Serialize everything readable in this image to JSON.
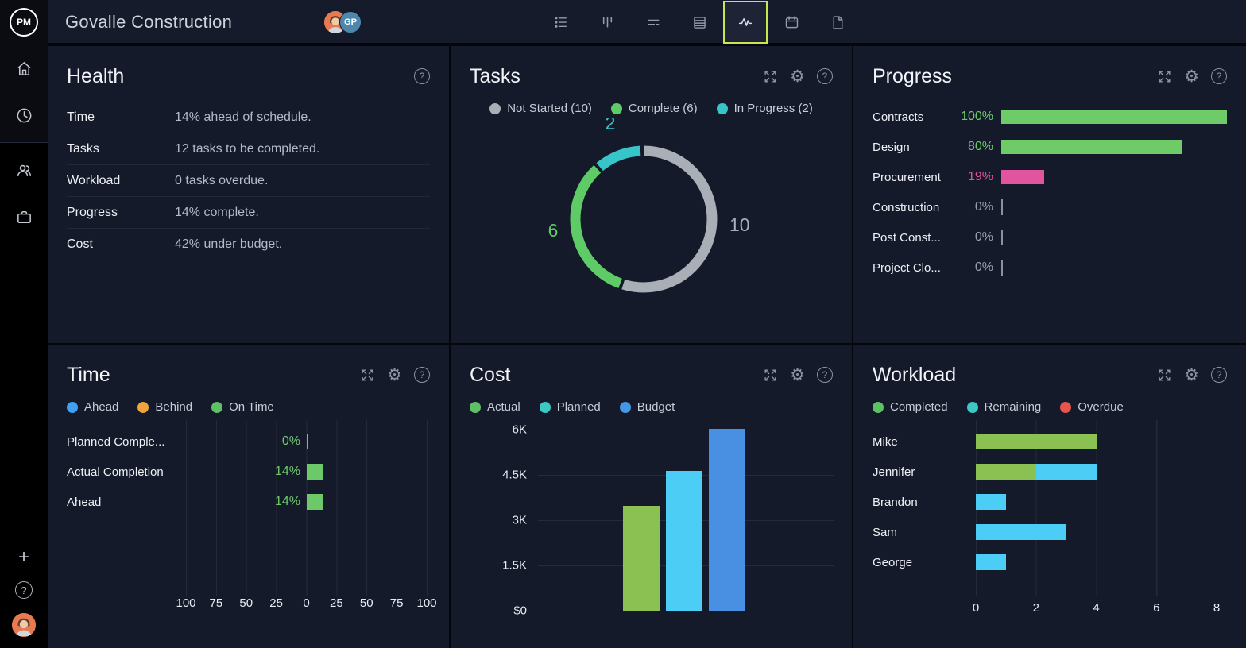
{
  "header": {
    "logo_text": "PM",
    "project_title": "Govalle Construction",
    "avatar_badge": "GP",
    "active_view": "dashboard-view",
    "active_border_color": "#c9e64f",
    "view_icons": [
      "list-view-icon",
      "board-view-icon",
      "gantt-view-icon",
      "sheet-view-icon",
      "dashboard-view-icon",
      "calendar-view-icon",
      "page-view-icon"
    ]
  },
  "sidebar": {
    "top_icons": [
      "home-icon",
      "clock-icon"
    ],
    "mid_icons": [
      "team-icon",
      "portfolio-icon"
    ],
    "add_label": "+",
    "help_label": "?"
  },
  "panels": {
    "health": {
      "title": "Health",
      "help_label": "?",
      "rows": [
        {
          "label": "Time",
          "value": "14% ahead of schedule."
        },
        {
          "label": "Tasks",
          "value": "12 tasks to be completed."
        },
        {
          "label": "Workload",
          "value": "0 tasks overdue."
        },
        {
          "label": "Progress",
          "value": "14% complete."
        },
        {
          "label": "Cost",
          "value": "42% under budget."
        }
      ]
    },
    "tasks": {
      "title": "Tasks",
      "legend": [
        {
          "label": "Not Started (10)",
          "color": "#a9aeb7"
        },
        {
          "label": "Complete (6)",
          "color": "#5ecb66"
        },
        {
          "label": "In Progress (2)",
          "color": "#36c6c9"
        }
      ],
      "chart_data": {
        "type": "pie",
        "subtype": "donut",
        "total": 18,
        "segments": [
          {
            "label": "Not Started",
            "value": 10,
            "color": "#a9aeb7"
          },
          {
            "label": "Complete",
            "value": 6,
            "color": "#5ecb66"
          },
          {
            "label": "In Progress",
            "value": 2,
            "color": "#36c6c9"
          }
        ]
      }
    },
    "progress": {
      "title": "Progress",
      "chart_data": {
        "type": "bar",
        "orientation": "horizontal",
        "max": 100,
        "zero_color": "#99a0ab",
        "rows": [
          {
            "label": "Contracts",
            "value": 100,
            "pct_label": "100%",
            "color": "#6ecb68"
          },
          {
            "label": "Design",
            "value": 80,
            "pct_label": "80%",
            "color": "#6ecb68"
          },
          {
            "label": "Procurement",
            "value": 19,
            "pct_label": "19%",
            "color": "#e0559e"
          },
          {
            "label": "Construction",
            "value": 0,
            "pct_label": "0%",
            "color": "#99a0ab"
          },
          {
            "label": "Post Const...",
            "value": 0,
            "pct_label": "0%",
            "color": "#99a0ab"
          },
          {
            "label": "Project Clo...",
            "value": 0,
            "pct_label": "0%",
            "color": "#99a0ab"
          }
        ]
      }
    },
    "time": {
      "title": "Time",
      "legend": [
        {
          "label": "Ahead",
          "color": "#41a0f0"
        },
        {
          "label": "Behind",
          "color": "#f2a33c"
        },
        {
          "label": "On Time",
          "color": "#5cc263"
        }
      ],
      "chart_data": {
        "type": "bar",
        "orientation": "horizontal-diverging",
        "axis_range": [
          -100,
          100
        ],
        "axis_ticks": [
          "100",
          "75",
          "50",
          "25",
          "0",
          "25",
          "50",
          "75",
          "100"
        ],
        "rows": [
          {
            "label": "Planned Comple...",
            "value": 0,
            "pct_label": "0%",
            "color": "#6dc86a"
          },
          {
            "label": "Actual Completion",
            "value": 14,
            "pct_label": "14%",
            "color": "#6dc86a"
          },
          {
            "label": "Ahead",
            "value": 14,
            "pct_label": "14%",
            "color": "#6dc86a"
          }
        ]
      }
    },
    "cost": {
      "title": "Cost",
      "legend": [
        {
          "label": "Actual",
          "color": "#5cc263"
        },
        {
          "label": "Planned",
          "color": "#3ec8c3"
        },
        {
          "label": "Budget",
          "color": "#4598e8"
        }
      ],
      "chart_data": {
        "type": "bar",
        "orientation": "vertical",
        "ymax": 6000,
        "yticks": [
          "6K",
          "4.5K",
          "3K",
          "1.5K",
          "$0"
        ],
        "series": [
          {
            "name": "Actual",
            "value": 3450,
            "color": "#8bc152"
          },
          {
            "name": "Planned",
            "value": 4600,
            "color": "#4bcdf6"
          },
          {
            "name": "Budget",
            "value": 6000,
            "color": "#4a90e2"
          }
        ]
      }
    },
    "workload": {
      "title": "Workload",
      "legend": [
        {
          "label": "Completed",
          "color": "#5cc263"
        },
        {
          "label": "Remaining",
          "color": "#3ec8c3"
        },
        {
          "label": "Overdue",
          "color": "#e8544a"
        }
      ],
      "chart_data": {
        "type": "bar",
        "subtype": "stacked",
        "orientation": "horizontal",
        "xmax": 8,
        "xticks": [
          "0",
          "2",
          "4",
          "6",
          "8"
        ],
        "colors": {
          "completed": "#8bc152",
          "remaining": "#4bcdf6",
          "overdue": "#e8544a"
        },
        "rows": [
          {
            "label": "Mike",
            "completed": 4,
            "remaining": 0
          },
          {
            "label": "Jennifer",
            "completed": 2,
            "remaining": 2
          },
          {
            "label": "Brandon",
            "completed": 0,
            "remaining": 1
          },
          {
            "label": "Sam",
            "completed": 0,
            "remaining": 3
          },
          {
            "label": "George",
            "completed": 0,
            "remaining": 1
          }
        ]
      }
    }
  }
}
